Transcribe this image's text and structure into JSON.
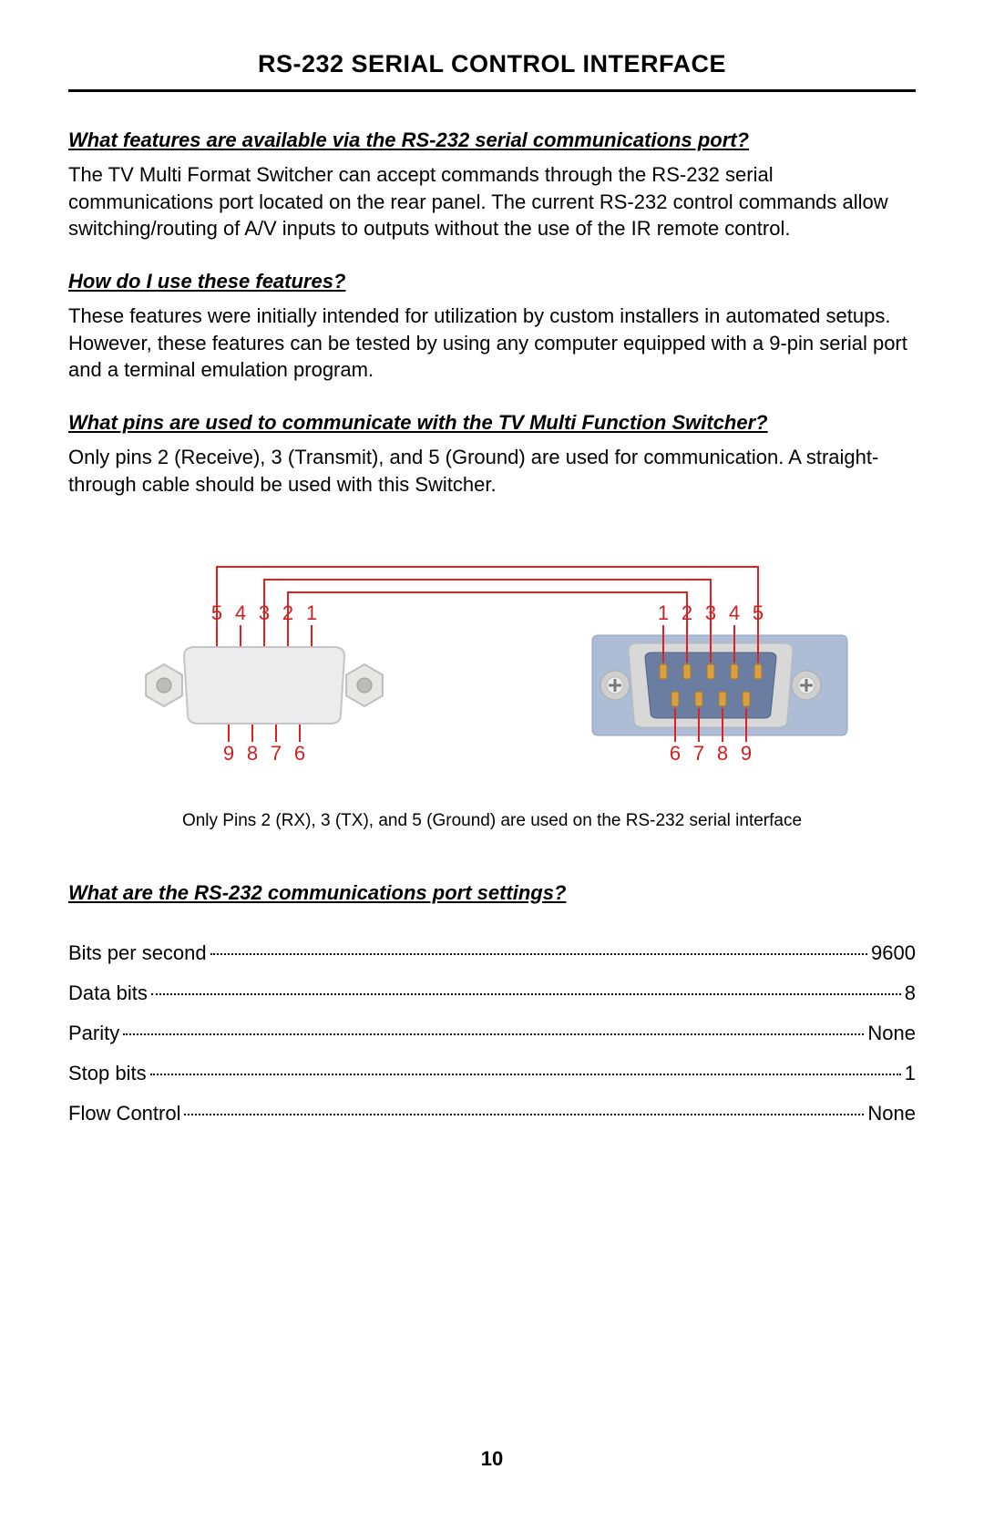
{
  "title": "RS-232 SERIAL CONTROL INTERFACE",
  "q1": {
    "heading": "What features are available via the RS-232 serial communications port?",
    "body": "The TV Multi Format Switcher can accept commands through the RS-232 serial communications port located on the rear panel. The current RS-232 control commands allow switching/routing of A/V inputs to  outputs without the use of the IR remote control."
  },
  "q2": {
    "heading": "How do I use these features?",
    "body": "These features were initially intended for utilization by custom installers in automated setups. However, these features can be tested by using any computer equipped with a 9-pin serial port and a terminal emulation program."
  },
  "q3": {
    "heading": "What pins are used to communicate with the TV Multi Function Switcher?",
    "body": "Only pins 2 (Receive), 3 (Transmit), and 5 (Ground) are used for communication. A straight-through cable should be used with this Switcher."
  },
  "diagram": {
    "caption": "Only Pins 2 (RX), 3 (TX), and 5 (Ground) are used on the RS-232 serial interface",
    "left_top_labels": [
      "5",
      "4",
      "3",
      "2",
      "1"
    ],
    "left_bottom_labels": [
      "9",
      "8",
      "7",
      "6"
    ],
    "right_top_labels": [
      "1",
      "2",
      "3",
      "4",
      "5"
    ],
    "right_bottom_labels": [
      "6",
      "7",
      "8",
      "9"
    ],
    "label_color": "#d21f1f",
    "wire_color": "#e31e1e",
    "left_body_fill": "#2b2b2b",
    "left_body_stroke": "#7a7a7a",
    "nut_fill": "#e7e7e5",
    "nut_stroke": "#bfbfbf",
    "pin_cavity": "#111111",
    "right_outer_fill": "#aebdd6",
    "right_inner_fill": "#6b7da0",
    "right_metal_fill": "#d8d8d8",
    "right_pin_fill": "#d9a043",
    "screw_ring": "#cfcfcf",
    "screw_slot": "#7a7a7a"
  },
  "q4": {
    "heading": "What are the RS-232 communications port settings?"
  },
  "settings": [
    {
      "label": "Bits per second",
      "value": "9600"
    },
    {
      "label": "Data bits",
      "value": "8"
    },
    {
      "label": "Parity",
      "value": "None"
    },
    {
      "label": "Stop bits",
      "value": "1"
    },
    {
      "label": "Flow Control",
      "value": "None"
    }
  ],
  "page_number": "10"
}
